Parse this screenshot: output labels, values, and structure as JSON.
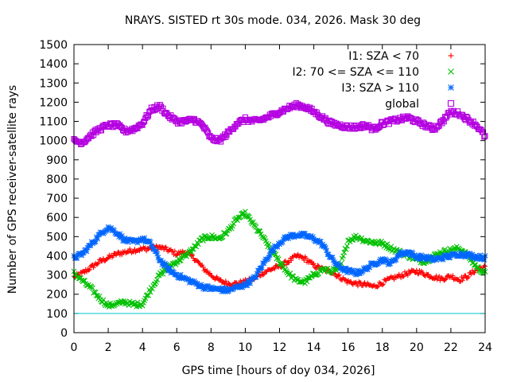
{
  "chart_data": {
    "type": "scatter",
    "title": "NRAYS. SISTED rt 30s mode. 034, 2026. Mask 30 deg",
    "xlabel": "GPS time [hours of doy 034, 2026]",
    "ylabel": "Number of GPS receiver-satellite rays",
    "xlim": [
      0,
      24
    ],
    "ylim": [
      0,
      1500
    ],
    "xticks": [
      "0",
      "2",
      "4",
      "6",
      "8",
      "10",
      "12",
      "14",
      "16",
      "18",
      "20",
      "22",
      "24"
    ],
    "yticks": [
      "0",
      "100",
      "200",
      "300",
      "400",
      "500",
      "600",
      "700",
      "800",
      "900",
      "1000",
      "1100",
      "1200",
      "1300",
      "1400",
      "1500"
    ],
    "grid": false,
    "legend_position": "top-right",
    "threshold_line": {
      "y": 100,
      "color": "#00c8c8"
    },
    "series": [
      {
        "name": "I1: SZA < 70",
        "marker": "plus",
        "color": "#ff0000",
        "x": [
          0,
          0.5,
          1,
          1.5,
          2,
          2.5,
          3,
          3.5,
          4,
          4.5,
          5,
          5.5,
          6,
          6.5,
          7,
          7.5,
          8,
          8.5,
          9,
          9.5,
          10,
          10.5,
          11,
          11.5,
          12,
          12.5,
          13,
          13.5,
          14,
          14.5,
          15,
          15.5,
          16,
          16.5,
          17,
          17.5,
          18,
          18.5,
          19,
          19.5,
          20,
          20.5,
          21,
          21.5,
          22,
          22.5,
          23,
          23.5,
          24
        ],
        "values": [
          290,
          310,
          340,
          370,
          390,
          410,
          420,
          430,
          435,
          440,
          445,
          430,
          410,
          420,
          390,
          340,
          300,
          270,
          255,
          255,
          265,
          280,
          310,
          330,
          345,
          370,
          400,
          385,
          350,
          330,
          320,
          290,
          265,
          255,
          250,
          240,
          260,
          280,
          295,
          310,
          320,
          305,
          290,
          280,
          295,
          275,
          295,
          330,
          340
        ]
      },
      {
        "name": "I2: 70 <= SZA <= 110",
        "marker": "cross",
        "color": "#00c000",
        "x": [
          0,
          0.5,
          1,
          1.5,
          2,
          2.5,
          3,
          3.5,
          4,
          4.5,
          5,
          5.5,
          6,
          6.5,
          7,
          7.5,
          8,
          8.5,
          9,
          9.5,
          10,
          10.5,
          11,
          11.5,
          12,
          12.5,
          13,
          13.5,
          14,
          14.5,
          15,
          15.5,
          16,
          16.5,
          17,
          17.5,
          18,
          18.5,
          19,
          19.5,
          20,
          20.5,
          21,
          21.5,
          22,
          22.5,
          23,
          23.5,
          24
        ],
        "values": [
          310,
          270,
          230,
          180,
          140,
          150,
          160,
          145,
          150,
          230,
          300,
          340,
          370,
          400,
          440,
          490,
          500,
          490,
          530,
          590,
          620,
          560,
          500,
          430,
          370,
          310,
          270,
          265,
          300,
          330,
          320,
          330,
          480,
          500,
          480,
          470,
          465,
          440,
          420,
          400,
          380,
          370,
          400,
          420,
          430,
          440,
          400,
          340,
          310
        ]
      },
      {
        "name": "I3: SZA > 110",
        "marker": "star",
        "color": "#0066ff",
        "x": [
          0,
          0.5,
          1,
          1.5,
          2,
          2.5,
          3,
          3.5,
          4,
          4.5,
          5,
          5.5,
          6,
          6.5,
          7,
          7.5,
          8,
          8.5,
          9,
          9.5,
          10,
          10.5,
          11,
          11.5,
          12,
          12.5,
          13,
          13.5,
          14,
          14.5,
          15,
          15.5,
          16,
          16.5,
          17,
          17.5,
          18,
          18.5,
          19,
          19.5,
          20,
          20.5,
          21,
          21.5,
          22,
          22.5,
          23,
          23.5,
          24
        ],
        "values": [
          390,
          410,
          460,
          510,
          550,
          520,
          480,
          470,
          490,
          460,
          380,
          330,
          300,
          280,
          260,
          240,
          230,
          225,
          220,
          235,
          250,
          280,
          350,
          420,
          470,
          500,
          510,
          505,
          490,
          460,
          390,
          340,
          320,
          310,
          330,
          360,
          380,
          360,
          410,
          420,
          395,
          390,
          380,
          390,
          400,
          410,
          405,
          395,
          390
        ]
      },
      {
        "name": "global",
        "marker": "square",
        "color": "#b400e0",
        "x": [
          0,
          0.5,
          1,
          1.5,
          2,
          2.5,
          3,
          3.5,
          4,
          4.5,
          5,
          5.5,
          6,
          6.5,
          7,
          7.5,
          8,
          8.5,
          9,
          9.5,
          10,
          10.5,
          11,
          11.5,
          12,
          12.5,
          13,
          13.5,
          14,
          14.5,
          15,
          15.5,
          16,
          16.5,
          17,
          17.5,
          18,
          18.5,
          19,
          19.5,
          20,
          20.5,
          21,
          21.5,
          22,
          22.5,
          23,
          23.5,
          24
        ],
        "values": [
          1000,
          990,
          1030,
          1060,
          1080,
          1080,
          1050,
          1060,
          1090,
          1160,
          1180,
          1130,
          1100,
          1100,
          1110,
          1080,
          1010,
          1000,
          1040,
          1090,
          1110,
          1100,
          1110,
          1130,
          1150,
          1170,
          1185,
          1175,
          1150,
          1120,
          1090,
          1080,
          1070,
          1070,
          1080,
          1060,
          1090,
          1100,
          1110,
          1120,
          1100,
          1080,
          1060,
          1100,
          1150,
          1140,
          1110,
          1080,
          1020
        ]
      }
    ]
  }
}
